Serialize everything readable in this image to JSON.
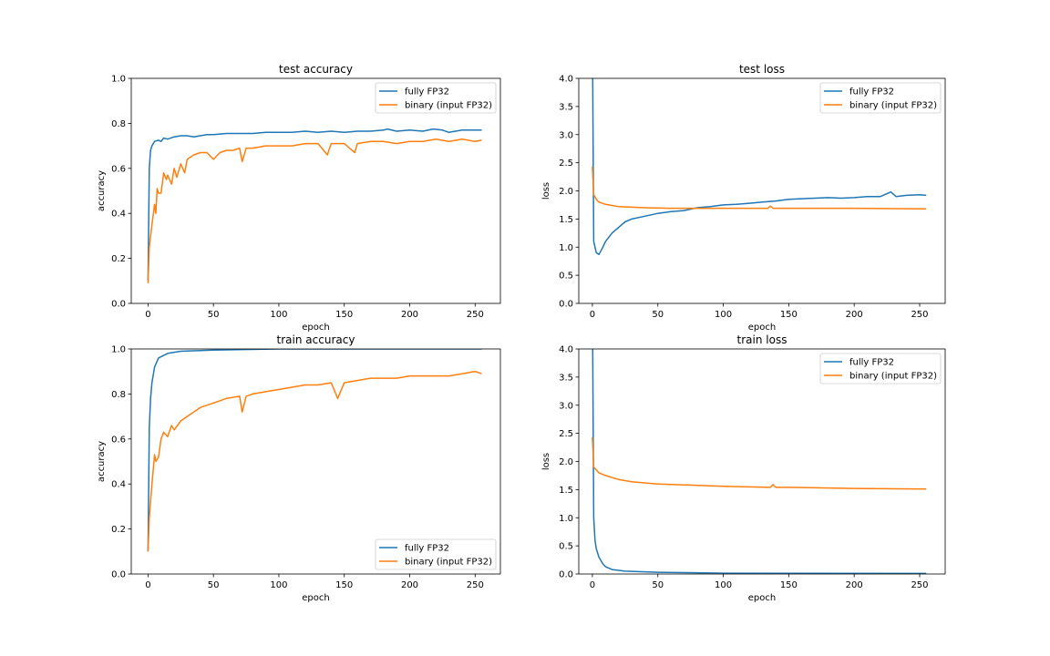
{
  "chart_data": [
    {
      "type": "line",
      "title": "test accuracy",
      "xlabel": "epoch",
      "ylabel": "accuracy",
      "xlim": [
        -12.8,
        269.3
      ],
      "ylim": [
        0,
        1.0
      ],
      "xticks": [
        0,
        50,
        100,
        150,
        200,
        250
      ],
      "yticks": [
        0.0,
        0.2,
        0.4,
        0.6,
        0.8,
        1.0
      ],
      "ytick_labels": [
        "0.0",
        "0.2",
        "0.4",
        "0.6",
        "0.8",
        "1.0"
      ],
      "legend": "top-right",
      "series": [
        {
          "name": "fully FP32",
          "color": "#1f77b4",
          "x": [
            0,
            1,
            2,
            3,
            5,
            8,
            10,
            12,
            15,
            20,
            25,
            30,
            35,
            40,
            45,
            50,
            60,
            70,
            80,
            90,
            100,
            110,
            120,
            130,
            140,
            150,
            160,
            170,
            180,
            183,
            190,
            200,
            210,
            218,
            225,
            230,
            240,
            250,
            255
          ],
          "y": [
            0.1,
            0.6,
            0.68,
            0.7,
            0.72,
            0.725,
            0.72,
            0.735,
            0.73,
            0.74,
            0.745,
            0.745,
            0.74,
            0.745,
            0.75,
            0.75,
            0.755,
            0.755,
            0.755,
            0.76,
            0.76,
            0.76,
            0.765,
            0.76,
            0.765,
            0.76,
            0.765,
            0.765,
            0.77,
            0.775,
            0.765,
            0.77,
            0.765,
            0.775,
            0.77,
            0.76,
            0.77,
            0.77,
            0.77
          ]
        },
        {
          "name": "binary (input FP32)",
          "color": "#ff7f0e",
          "x": [
            0,
            1,
            3,
            5,
            6,
            7,
            8,
            10,
            12,
            14,
            15,
            18,
            20,
            22,
            25,
            28,
            30,
            35,
            40,
            45,
            50,
            55,
            60,
            65,
            70,
            72,
            75,
            80,
            90,
            100,
            110,
            120,
            130,
            137,
            140,
            150,
            158,
            160,
            170,
            180,
            190,
            200,
            210,
            220,
            230,
            240,
            250,
            255
          ],
          "y": [
            0.09,
            0.25,
            0.35,
            0.44,
            0.4,
            0.51,
            0.49,
            0.49,
            0.58,
            0.55,
            0.57,
            0.53,
            0.6,
            0.56,
            0.62,
            0.58,
            0.64,
            0.66,
            0.67,
            0.67,
            0.64,
            0.67,
            0.68,
            0.68,
            0.69,
            0.63,
            0.69,
            0.69,
            0.7,
            0.7,
            0.7,
            0.71,
            0.71,
            0.66,
            0.71,
            0.71,
            0.67,
            0.71,
            0.72,
            0.72,
            0.71,
            0.72,
            0.72,
            0.73,
            0.72,
            0.73,
            0.72,
            0.725
          ]
        }
      ]
    },
    {
      "type": "line",
      "title": "test loss",
      "xlabel": "epoch",
      "ylabel": "loss",
      "xlim": [
        -10.4,
        269.5
      ],
      "ylim": [
        0,
        4.0
      ],
      "xticks": [
        0,
        50,
        100,
        150,
        200,
        250
      ],
      "yticks": [
        0.0,
        0.5,
        1.0,
        1.5,
        2.0,
        2.5,
        3.0,
        3.5,
        4.0
      ],
      "ytick_labels": [
        "0.0",
        "0.5",
        "1.0",
        "1.5",
        "2.0",
        "2.5",
        "3.0",
        "3.5",
        "4.0"
      ],
      "legend": "top-right",
      "series": [
        {
          "name": "fully FP32",
          "color": "#1f77b4",
          "x": [
            0,
            1,
            3,
            5,
            8,
            10,
            15,
            20,
            25,
            30,
            40,
            50,
            60,
            70,
            80,
            90,
            100,
            110,
            120,
            130,
            140,
            150,
            160,
            170,
            180,
            190,
            200,
            210,
            220,
            228,
            232,
            240,
            250,
            255
          ],
          "y": [
            5.0,
            1.1,
            0.9,
            0.87,
            1.0,
            1.1,
            1.25,
            1.35,
            1.45,
            1.5,
            1.55,
            1.6,
            1.63,
            1.65,
            1.7,
            1.72,
            1.75,
            1.76,
            1.78,
            1.8,
            1.82,
            1.85,
            1.86,
            1.87,
            1.88,
            1.87,
            1.88,
            1.9,
            1.9,
            1.98,
            1.9,
            1.92,
            1.93,
            1.92
          ]
        },
        {
          "name": "binary (input FP32)",
          "color": "#ff7f0e",
          "x": [
            0,
            1,
            3,
            5,
            10,
            20,
            40,
            60,
            100,
            134,
            136,
            138,
            200,
            255
          ],
          "y": [
            2.43,
            1.93,
            1.85,
            1.8,
            1.76,
            1.72,
            1.7,
            1.69,
            1.69,
            1.69,
            1.73,
            1.69,
            1.69,
            1.68
          ]
        }
      ]
    },
    {
      "type": "line",
      "title": "train accuracy",
      "xlabel": "epoch",
      "ylabel": "accuracy",
      "xlim": [
        -12.8,
        269.3
      ],
      "ylim": [
        0,
        1.0
      ],
      "xticks": [
        0,
        50,
        100,
        150,
        200,
        250
      ],
      "yticks": [
        0.0,
        0.2,
        0.4,
        0.6,
        0.8,
        1.0
      ],
      "ytick_labels": [
        "0.0",
        "0.2",
        "0.4",
        "0.6",
        "0.8",
        "1.0"
      ],
      "legend": "bottom-right",
      "series": [
        {
          "name": "fully FP32",
          "color": "#1f77b4",
          "x": [
            0,
            1,
            2,
            3,
            5,
            8,
            15,
            25,
            50,
            100,
            255
          ],
          "y": [
            0.1,
            0.65,
            0.78,
            0.85,
            0.92,
            0.96,
            0.98,
            0.99,
            0.995,
            1.0,
            1.0
          ]
        },
        {
          "name": "binary (input FP32)",
          "color": "#ff7f0e",
          "x": [
            0,
            1,
            3,
            5,
            6,
            8,
            10,
            12,
            15,
            18,
            20,
            25,
            30,
            35,
            40,
            45,
            50,
            60,
            70,
            72,
            75,
            80,
            90,
            100,
            110,
            120,
            130,
            140,
            145,
            150,
            160,
            170,
            180,
            190,
            200,
            210,
            220,
            230,
            240,
            250,
            255
          ],
          "y": [
            0.1,
            0.25,
            0.4,
            0.53,
            0.5,
            0.52,
            0.6,
            0.63,
            0.61,
            0.66,
            0.64,
            0.68,
            0.7,
            0.72,
            0.74,
            0.75,
            0.76,
            0.78,
            0.79,
            0.72,
            0.79,
            0.8,
            0.81,
            0.82,
            0.83,
            0.84,
            0.84,
            0.85,
            0.78,
            0.85,
            0.86,
            0.87,
            0.87,
            0.87,
            0.88,
            0.88,
            0.88,
            0.88,
            0.89,
            0.9,
            0.89
          ]
        }
      ]
    },
    {
      "type": "line",
      "title": "train loss",
      "xlabel": "epoch",
      "ylabel": "loss",
      "xlim": [
        -10.4,
        269.5
      ],
      "ylim": [
        0,
        4.0
      ],
      "xticks": [
        0,
        50,
        100,
        150,
        200,
        250
      ],
      "yticks": [
        0.0,
        0.5,
        1.0,
        1.5,
        2.0,
        2.5,
        3.0,
        3.5,
        4.0
      ],
      "ytick_labels": [
        "0.0",
        "0.5",
        "1.0",
        "1.5",
        "2.0",
        "2.5",
        "3.0",
        "3.5",
        "4.0"
      ],
      "legend": "top-right",
      "series": [
        {
          "name": "fully FP32",
          "color": "#1f77b4",
          "x": [
            0,
            1,
            2,
            3,
            5,
            8,
            10,
            15,
            25,
            50,
            100,
            255
          ],
          "y": [
            5.0,
            1.0,
            0.6,
            0.45,
            0.3,
            0.18,
            0.13,
            0.08,
            0.05,
            0.03,
            0.015,
            0.01
          ]
        },
        {
          "name": "binary (input FP32)",
          "color": "#ff7f0e",
          "x": [
            0,
            1,
            5,
            10,
            20,
            30,
            50,
            100,
            136,
            138,
            140,
            150,
            200,
            255
          ],
          "y": [
            2.43,
            1.9,
            1.8,
            1.75,
            1.68,
            1.64,
            1.6,
            1.56,
            1.54,
            1.59,
            1.54,
            1.54,
            1.52,
            1.51
          ]
        }
      ]
    }
  ]
}
